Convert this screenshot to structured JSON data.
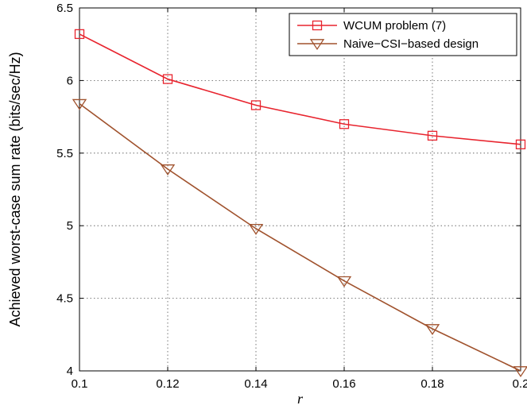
{
  "chart_data": {
    "type": "line",
    "xlabel": "r",
    "ylabel": "Achieved worst-case sum rate (bits/sec/Hz)",
    "xlim": [
      0.1,
      0.2
    ],
    "ylim": [
      4,
      6.5
    ],
    "x": [
      0.1,
      0.12,
      0.14,
      0.16,
      0.18,
      0.2
    ],
    "xticks": [
      "0.1",
      "0.12",
      "0.14",
      "0.16",
      "0.18",
      "0.2"
    ],
    "yticks": [
      "4",
      "4.5",
      "5",
      "5.5",
      "6",
      "6.5"
    ],
    "grid": true,
    "legend_position": "top-right",
    "series": [
      {
        "name": "WCUM problem (7)",
        "values": [
          6.32,
          6.01,
          5.83,
          5.7,
          5.62,
          5.56
        ],
        "color": "#e8242e",
        "marker": "square"
      },
      {
        "name": "Naive−CSI−based design",
        "values": [
          5.84,
          5.39,
          4.98,
          4.62,
          4.29,
          4.0
        ],
        "color": "#a0522d",
        "marker": "triangle-down"
      }
    ]
  }
}
